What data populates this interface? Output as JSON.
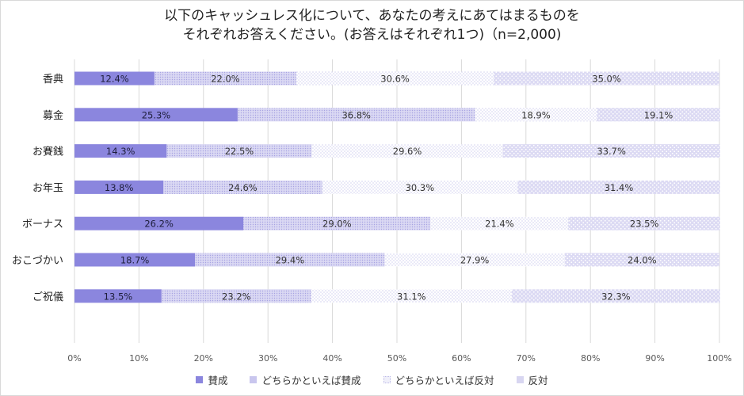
{
  "chart_data": {
    "type": "bar",
    "orientation": "horizontal",
    "stacked": true,
    "title": [
      "以下のキャッシュレス化について、あなたの考えにあてはまるものを",
      "それぞれお答えください。(お答えはそれぞれ1つ)（n=2,000)"
    ],
    "categories": [
      "香典",
      "募金",
      "お賽銭",
      "お年玉",
      "ボーナス",
      "おこづかい",
      "ご祝儀"
    ],
    "series": [
      {
        "name": "賛成",
        "color": "#8b86de",
        "values": [
          12.4,
          25.3,
          14.3,
          13.8,
          26.2,
          18.7,
          13.5
        ]
      },
      {
        "name": "どちらかといえば賛成",
        "color": "#c9c6ee",
        "values": [
          22.0,
          36.8,
          22.5,
          24.6,
          29.0,
          29.4,
          23.2
        ]
      },
      {
        "name": "どちらかといえば反対",
        "color": "#ececf8",
        "values": [
          30.6,
          18.9,
          29.6,
          30.3,
          21.4,
          27.9,
          31.1
        ]
      },
      {
        "name": "反対",
        "color": "#d8d6f1",
        "values": [
          35.0,
          19.1,
          33.7,
          31.4,
          23.5,
          24.0,
          32.3
        ]
      }
    ],
    "xlim": [
      0,
      100
    ],
    "xticks": [
      "0%",
      "10%",
      "20%",
      "30%",
      "40%",
      "50%",
      "60%",
      "70%",
      "80%",
      "90%",
      "100%"
    ],
    "value_suffix": "%",
    "grid": true,
    "legend_position": "bottom"
  }
}
